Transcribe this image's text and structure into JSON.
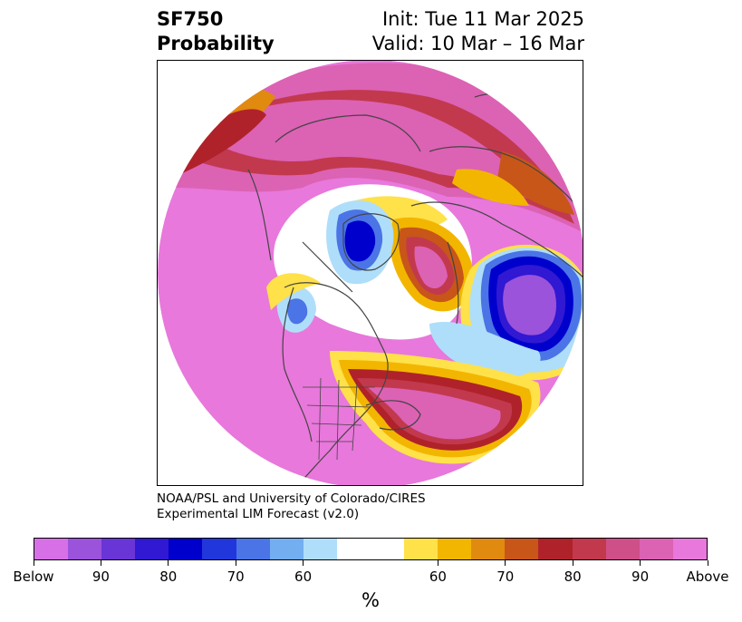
{
  "header": {
    "variable": "SF750",
    "product": "Probability",
    "init": "Init: Tue 11 Mar 2025",
    "valid": "Valid: 10 Mar – 16 Mar"
  },
  "credit": {
    "line1": "NOAA/PSL and University of Colorado/CIRES",
    "line2": "Experimental LIM Forecast (v2.0)"
  },
  "colorbar": {
    "unit": "%",
    "colors": [
      "#d770e6",
      "#9b53dc",
      "#6a35d6",
      "#3118d2",
      "#0000cd",
      "#2237db",
      "#4b74e6",
      "#72aef0",
      "#afdefa",
      "#ffffff",
      "#ffe14a",
      "#f2b600",
      "#e08a10",
      "#c85618",
      "#b0222a",
      "#c2394e",
      "#cf5088",
      "#dc62b4",
      "#e878db"
    ],
    "tick_labels": [
      "Below",
      "90",
      "80",
      "70",
      "60",
      "60",
      "70",
      "80",
      "90",
      "Above"
    ]
  },
  "map": {
    "projection": "north-polar-stereographic",
    "land_fill": "none",
    "background_color": "#e878db",
    "coastline_color": "#444444"
  }
}
